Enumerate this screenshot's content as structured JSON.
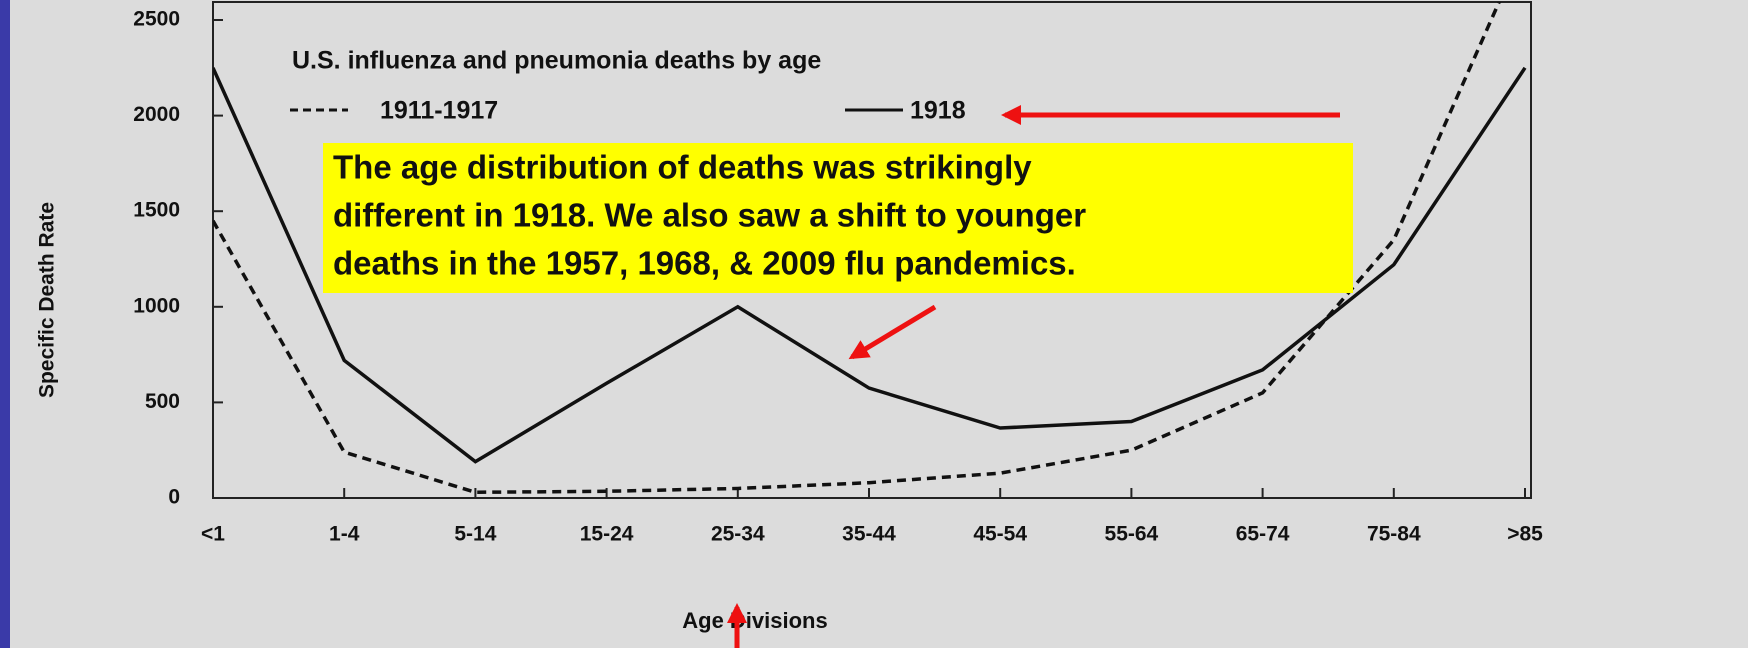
{
  "chart_data": {
    "type": "line",
    "title": "U.S. influenza and pneumonia deaths by age",
    "xlabel": "Age Divisions",
    "ylabel": "Specific Death Rate",
    "categories": [
      "<1",
      "1-4",
      "5-14",
      "15-24",
      "25-34",
      "35-44",
      "45-54",
      "55-64",
      "65-74",
      "75-84",
      ">85"
    ],
    "series": [
      {
        "name": "1911-1917",
        "color": "#111111",
        "line_style": "dashed",
        "values": [
          1450,
          240,
          30,
          35,
          50,
          80,
          130,
          250,
          550,
          1350,
          2900
        ]
      },
      {
        "name": "1918",
        "color": "#111111",
        "line_style": "solid",
        "values": [
          2250,
          720,
          190,
          600,
          1000,
          575,
          366,
          400,
          670,
          1220,
          2250
        ]
      }
    ],
    "ylim": [
      0,
      2500
    ],
    "yticks": [
      0,
      500,
      1000,
      1500,
      2000,
      2500
    ],
    "annotation": [
      "The age distribution of deaths was strikingly",
      "different in 1918.  We also saw a shift to younger",
      "deaths in the 1957, 1968, & 2009 flu pandemics."
    ],
    "annotation_color": "#ffff00",
    "arrow_color": "#ee1111"
  }
}
